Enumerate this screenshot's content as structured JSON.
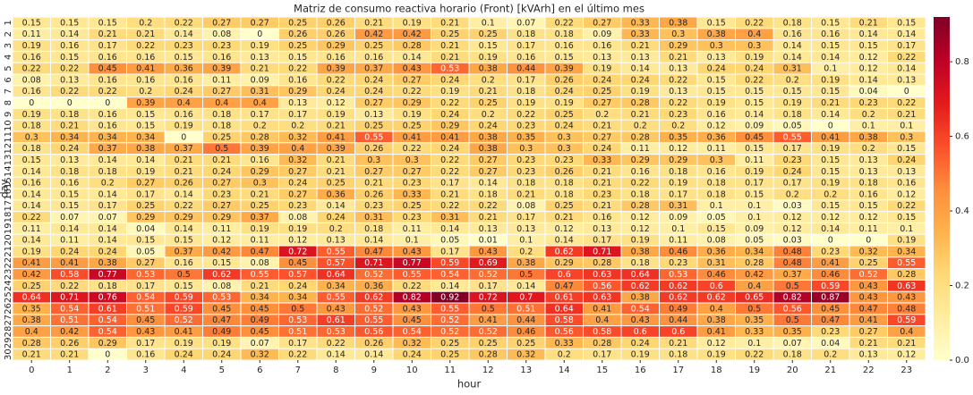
{
  "chart_data": {
    "type": "heatmap",
    "title": "Matriz de consumo reactiva horario (Front) [kVArh] en el último mes",
    "xlabel": "hour",
    "ylabel": "day",
    "x": [
      0,
      1,
      2,
      3,
      4,
      5,
      6,
      7,
      8,
      9,
      10,
      11,
      12,
      13,
      14,
      15,
      16,
      17,
      18,
      19,
      20,
      21,
      22,
      23
    ],
    "y": [
      1,
      2,
      3,
      4,
      5,
      6,
      7,
      8,
      9,
      10,
      11,
      12,
      13,
      14,
      15,
      16,
      17,
      18,
      19,
      20,
      21,
      22,
      23,
      24,
      25,
      26,
      27,
      28,
      29,
      30
    ],
    "values": [
      [
        0.15,
        0.15,
        0.15,
        0.2,
        0.22,
        0.27,
        0.27,
        0.25,
        0.26,
        0.21,
        0.19,
        0.21,
        0.1,
        0.07,
        0.22,
        0.27,
        0.33,
        0.38,
        0.15,
        0.22,
        0.18,
        0.15,
        0.21,
        0.15
      ],
      [
        0.11,
        0.14,
        0.21,
        0.21,
        0.14,
        0.08,
        0,
        0.26,
        0.26,
        0.42,
        0.42,
        0.25,
        0.25,
        0.18,
        0.18,
        0.09,
        0.33,
        0.3,
        0.38,
        0.4,
        0.16,
        0.16,
        0.14,
        0.14
      ],
      [
        0.19,
        0.16,
        0.17,
        0.22,
        0.23,
        0.23,
        0.19,
        0.25,
        0.29,
        0.25,
        0.28,
        0.21,
        0.15,
        0.17,
        0.16,
        0.16,
        0.21,
        0.29,
        0.3,
        0.3,
        0.14,
        0.15,
        0.15,
        0.17
      ],
      [
        0.16,
        0.15,
        0.16,
        0.16,
        0.15,
        0.16,
        0.13,
        0.15,
        0.16,
        0.16,
        0.14,
        0.21,
        0.19,
        0.16,
        0.15,
        0.13,
        0.13,
        0.21,
        0.13,
        0.19,
        0.14,
        0.14,
        0.12,
        0.22
      ],
      [
        0.22,
        0.22,
        0.45,
        0.41,
        0.36,
        0.39,
        0.21,
        0.22,
        0.39,
        0.37,
        0.43,
        0.53,
        0.38,
        0.44,
        0.39,
        0.19,
        0.14,
        0.13,
        0.24,
        0.24,
        0.31,
        0.1,
        0.12,
        0.14
      ],
      [
        0.08,
        0.13,
        0.16,
        0.16,
        0.16,
        0.11,
        0.09,
        0.16,
        0.22,
        0.24,
        0.27,
        0.24,
        0.2,
        0.17,
        0.26,
        0.24,
        0.24,
        0.22,
        0.15,
        0.22,
        0.2,
        0.19,
        0.14,
        0.13
      ],
      [
        0.16,
        0.22,
        0.22,
        0.2,
        0.24,
        0.27,
        0.31,
        0.29,
        0.24,
        0.24,
        0.22,
        0.19,
        0.21,
        0.18,
        0.24,
        0.25,
        0.19,
        0.13,
        0.15,
        0.15,
        0.15,
        0.15,
        0.04,
        0
      ],
      [
        0,
        0,
        0,
        0.39,
        0.4,
        0.4,
        0.4,
        0.13,
        0.12,
        0.27,
        0.29,
        0.22,
        0.25,
        0.19,
        0.19,
        0.27,
        0.28,
        0.22,
        0.19,
        0.15,
        0.19,
        0.21,
        0.23,
        0.22
      ],
      [
        0.19,
        0.18,
        0.16,
        0.15,
        0.16,
        0.18,
        0.17,
        0.17,
        0.19,
        0.13,
        0.19,
        0.24,
        0.2,
        0.22,
        0.25,
        0.2,
        0.21,
        0.23,
        0.16,
        0.14,
        0.18,
        0.14,
        0.2,
        0.21
      ],
      [
        0.18,
        0.21,
        0.16,
        0.15,
        0.19,
        0.18,
        0.2,
        0.2,
        0.21,
        0.25,
        0.25,
        0.29,
        0.24,
        0.23,
        0.24,
        0.21,
        0.2,
        0.2,
        0.12,
        0.09,
        0.05,
        0,
        0.1,
        0.1
      ],
      [
        0.3,
        0.34,
        0.34,
        0.34,
        0,
        0.25,
        0.28,
        0.32,
        0.41,
        0.55,
        0.41,
        0.41,
        0.38,
        0.35,
        0.3,
        0.27,
        0.28,
        0.35,
        0.36,
        0.45,
        0.55,
        0.41,
        0.38,
        0.3
      ],
      [
        0.18,
        0.24,
        0.37,
        0.38,
        0.37,
        0.5,
        0.39,
        0.4,
        0.39,
        0.26,
        0.22,
        0.24,
        0.38,
        0.3,
        0.3,
        0.24,
        0.11,
        0.12,
        0.11,
        0.15,
        0.17,
        0.19,
        0.2,
        0.15
      ],
      [
        0.15,
        0.13,
        0.14,
        0.14,
        0.21,
        0.21,
        0.16,
        0.32,
        0.21,
        0.3,
        0.3,
        0.22,
        0.27,
        0.23,
        0.23,
        0.33,
        0.29,
        0.29,
        0.3,
        0.11,
        0.23,
        0.15,
        0.13,
        0.24
      ],
      [
        0.14,
        0.18,
        0.18,
        0.19,
        0.21,
        0.24,
        0.29,
        0.27,
        0.21,
        0.27,
        0.27,
        0.22,
        0.27,
        0.23,
        0.26,
        0.21,
        0.16,
        0.18,
        0.16,
        0.19,
        0.24,
        0.15,
        0.13,
        0.13
      ],
      [
        0.16,
        0.16,
        0.2,
        0.27,
        0.26,
        0.27,
        0.3,
        0.24,
        0.25,
        0.21,
        0.23,
        0.17,
        0.14,
        0.18,
        0.18,
        0.21,
        0.22,
        0.19,
        0.18,
        0.17,
        0.17,
        0.19,
        0.18,
        0.16
      ],
      [
        0.14,
        0.15,
        0.14,
        0.17,
        0.14,
        0.23,
        0.21,
        0.27,
        0.36,
        0.26,
        0.33,
        0.21,
        0.18,
        0.21,
        0.18,
        0.23,
        0.18,
        0.17,
        0.18,
        0.15,
        0.2,
        0.2,
        0.16,
        0.12
      ],
      [
        0.14,
        0.15,
        0.17,
        0.25,
        0.22,
        0.27,
        0.25,
        0.23,
        0.14,
        0.23,
        0.25,
        0.22,
        0.22,
        0.08,
        0.25,
        0.21,
        0.28,
        0.31,
        0.1,
        0.1,
        0.03,
        0.15,
        0.15,
        0.22
      ],
      [
        0.22,
        0.07,
        0.07,
        0.29,
        0.29,
        0.29,
        0.37,
        0.08,
        0.24,
        0.31,
        0.23,
        0.31,
        0.21,
        0.17,
        0.21,
        0.16,
        0.12,
        0.09,
        0.05,
        0.1,
        0.12,
        0.12,
        0.12,
        0.15
      ],
      [
        0.11,
        0.14,
        0.14,
        0.04,
        0.14,
        0.11,
        0.19,
        0.19,
        0.2,
        0.18,
        0.11,
        0.14,
        0.13,
        0.13,
        0.12,
        0.13,
        0.12,
        0.1,
        0.15,
        0.09,
        0.12,
        0.14,
        0.11,
        0.1
      ],
      [
        0.14,
        0.11,
        0.14,
        0.15,
        0.15,
        0.12,
        0.11,
        0.12,
        0.13,
        0.14,
        0.1,
        0.05,
        0.01,
        0.1,
        0.14,
        0.17,
        0.19,
        0.11,
        0.08,
        0.05,
        0.03,
        0,
        0,
        0.19
      ],
      [
        0.19,
        0.24,
        0.24,
        0.05,
        0.37,
        0.42,
        0.47,
        0.72,
        0.55,
        0.47,
        0.43,
        0.17,
        0.43,
        0.2,
        0.62,
        0.71,
        0.38,
        0.46,
        0.36,
        0.34,
        0.48,
        0.23,
        0.32,
        0.34
      ],
      [
        0.41,
        0.41,
        0.38,
        0.27,
        0.16,
        0.15,
        0.08,
        0.45,
        0.57,
        0.71,
        0.77,
        0.59,
        0.69,
        0.38,
        0.29,
        0.28,
        0.18,
        0.23,
        0.31,
        0.28,
        0.48,
        0.41,
        0.25,
        0.55
      ],
      [
        0.42,
        0.58,
        0.77,
        0.53,
        0.5,
        0.62,
        0.55,
        0.57,
        0.64,
        0.52,
        0.55,
        0.54,
        0.52,
        0.5,
        0.6,
        0.63,
        0.64,
        0.53,
        0.46,
        0.42,
        0.37,
        0.46,
        0.52,
        0.28
      ],
      [
        0.25,
        0.22,
        0.18,
        0.17,
        0.15,
        0.08,
        0.21,
        0.24,
        0.34,
        0.36,
        0.22,
        0.14,
        0.17,
        0.14,
        0.47,
        0.56,
        0.62,
        0.62,
        0.6,
        0.4,
        0.5,
        0.59,
        0.43,
        0.63
      ],
      [
        0.64,
        0.71,
        0.76,
        0.54,
        0.59,
        0.53,
        0.34,
        0.34,
        0.55,
        0.62,
        0.82,
        0.92,
        0.72,
        0.7,
        0.61,
        0.63,
        0.38,
        0.62,
        0.62,
        0.65,
        0.82,
        0.87,
        0.43,
        0.43
      ],
      [
        0.35,
        0.54,
        0.61,
        0.51,
        0.59,
        0.45,
        0.45,
        0.5,
        0.43,
        0.52,
        0.43,
        0.55,
        0.5,
        0.51,
        0.64,
        0.41,
        0.54,
        0.49,
        0.4,
        0.5,
        0.56,
        0.45,
        0.47,
        0.48
      ],
      [
        0.38,
        0.51,
        0.54,
        0.45,
        0.52,
        0.47,
        0.49,
        0.53,
        0.61,
        0.55,
        0.45,
        0.52,
        0.41,
        0.44,
        0.58,
        0.4,
        0.43,
        0.44,
        0.38,
        0.35,
        0.5,
        0.47,
        0.41,
        0.59
      ],
      [
        0.4,
        0.42,
        0.54,
        0.43,
        0.41,
        0.49,
        0.45,
        0.51,
        0.53,
        0.56,
        0.54,
        0.52,
        0.52,
        0.46,
        0.56,
        0.58,
        0.6,
        0.6,
        0.41,
        0.33,
        0.35,
        0.23,
        0.27,
        0.4
      ],
      [
        0.28,
        0.26,
        0.29,
        0.17,
        0.19,
        0.19,
        0.07,
        0.17,
        0.22,
        0.26,
        0.32,
        0.25,
        0.25,
        0.25,
        0.33,
        0.28,
        0.24,
        0.21,
        0.12,
        0.1,
        0.07,
        0.04,
        0.21,
        0.21
      ],
      [
        0.21,
        0.21,
        0,
        0.16,
        0.24,
        0.24,
        0.32,
        0.22,
        0.14,
        0.14,
        0.24,
        0.25,
        0.28,
        0.32,
        0.2,
        0.17,
        0.19,
        0.18,
        0.19,
        0.22,
        0.18,
        0.2,
        0.13,
        0.12
      ]
    ],
    "colormap": "YlOrRd",
    "clim": [
      0,
      0.92
    ],
    "cticks": [
      {
        "value": 0,
        "label": "0.0"
      },
      0.2,
      0.4,
      0.6,
      0.8
    ]
  }
}
